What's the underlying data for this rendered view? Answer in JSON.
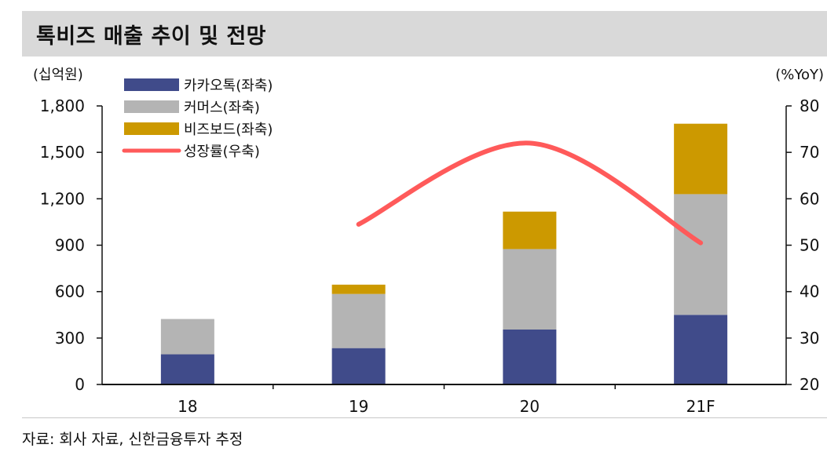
{
  "title": "톡비즈 매출 추이 및 전망",
  "source": "자료: 회사 자료, 신한금융투자 추정",
  "chart_data": {
    "type": "bar",
    "stacked": true,
    "categories": [
      "18",
      "19",
      "20",
      "21F"
    ],
    "left_unit": "(십억원)",
    "right_unit": "(%YoY)",
    "y_left_range": [
      0,
      1800
    ],
    "y_left_ticks": [
      "0",
      "300",
      "600",
      "900",
      "1,200",
      "1,500",
      "1,800"
    ],
    "y_right_range": [
      20,
      80
    ],
    "y_right_ticks": [
      "20",
      "30",
      "40",
      "50",
      "60",
      "70",
      "80"
    ],
    "series": [
      {
        "name": "카카오톡(좌축)",
        "kind": "bar",
        "color": "#404b8a",
        "values": [
          195,
          235,
          355,
          450
        ]
      },
      {
        "name": "커머스(좌축)",
        "kind": "bar",
        "color": "#b4b4b4",
        "values": [
          228,
          350,
          520,
          780
        ]
      },
      {
        "name": "비즈보드(좌축)",
        "kind": "bar",
        "color": "#cc9900",
        "values": [
          0,
          60,
          242,
          455
        ]
      },
      {
        "name": "성장률(우축)",
        "kind": "line",
        "color": "#ff5a5a",
        "axis": "right",
        "values": [
          null,
          54.5,
          72,
          50.5
        ]
      }
    ],
    "legend_position": "top-left",
    "grid": false
  }
}
